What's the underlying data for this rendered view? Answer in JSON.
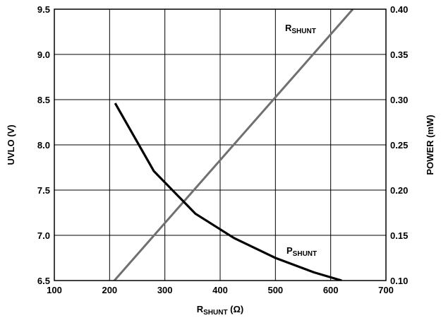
{
  "chart_data": {
    "type": "line",
    "x_axis": {
      "label_main": "R",
      "label_sub": "SHUNT",
      "label_unit": " (Ω)",
      "range": [
        100,
        700
      ],
      "ticks": [
        100,
        200,
        300,
        400,
        500,
        600,
        700
      ]
    },
    "y_left": {
      "label": "UVLO (V)",
      "range": [
        6.5,
        9.5
      ],
      "ticks": [
        "6.5",
        "7.0",
        "7.5",
        "8.0",
        "8.5",
        "9.0",
        "9.5"
      ]
    },
    "y_right": {
      "label": "POWER (mW)",
      "range": [
        0.1,
        0.4
      ],
      "ticks": [
        "0.10",
        "0.15",
        "0.20",
        "0.25",
        "0.30",
        "0.35",
        "0.40"
      ]
    },
    "grid": true,
    "series": [
      {
        "name_main": "R",
        "name_sub": "SHUNT",
        "axis": "left",
        "color": "#707070",
        "x": [
          200,
          640
        ],
        "y": [
          6.44,
          9.5
        ]
      },
      {
        "name_main": "P",
        "name_sub": "SHUNT",
        "axis": "right",
        "color": "#000000",
        "x": [
          210,
          280,
          355,
          425,
          500,
          570,
          620
        ],
        "y": [
          0.296,
          0.221,
          0.174,
          0.147,
          0.125,
          0.109,
          0.1
        ]
      }
    ]
  }
}
